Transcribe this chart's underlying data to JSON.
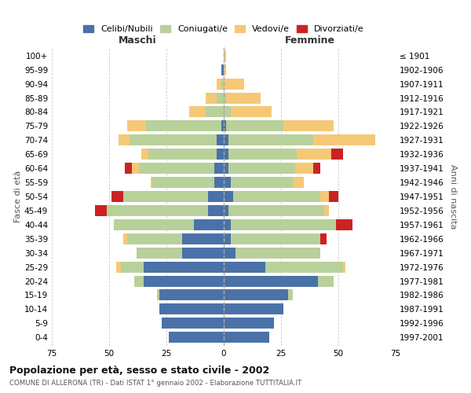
{
  "age_groups": [
    "0-4",
    "5-9",
    "10-14",
    "15-19",
    "20-24",
    "25-29",
    "30-34",
    "35-39",
    "40-44",
    "45-49",
    "50-54",
    "55-59",
    "60-64",
    "65-69",
    "70-74",
    "75-79",
    "80-84",
    "85-89",
    "90-94",
    "95-99",
    "100+"
  ],
  "birth_years": [
    "1997-2001",
    "1992-1996",
    "1987-1991",
    "1982-1986",
    "1977-1981",
    "1972-1976",
    "1967-1971",
    "1962-1966",
    "1957-1961",
    "1952-1956",
    "1947-1951",
    "1942-1946",
    "1937-1941",
    "1932-1936",
    "1927-1931",
    "1922-1926",
    "1917-1921",
    "1912-1916",
    "1907-1911",
    "1902-1906",
    "≤ 1901"
  ],
  "colors": {
    "celibi": "#4a72a8",
    "coniugati": "#b8d09a",
    "vedovi": "#f5c878",
    "divorziati": "#cc2222"
  },
  "legend_labels": [
    "Celibi/Nubili",
    "Coniugati/e",
    "Vedovi/e",
    "Divorziati/e"
  ],
  "male": {
    "celibi": [
      24,
      27,
      28,
      28,
      35,
      35,
      18,
      18,
      13,
      7,
      7,
      4,
      4,
      3,
      3,
      1,
      0,
      0,
      0,
      1,
      0
    ],
    "coniugati": [
      0,
      0,
      0,
      1,
      4,
      10,
      20,
      24,
      35,
      44,
      37,
      27,
      33,
      30,
      38,
      33,
      8,
      3,
      1,
      0,
      0
    ],
    "vedovi": [
      0,
      0,
      0,
      0,
      0,
      2,
      0,
      2,
      0,
      0,
      0,
      1,
      3,
      3,
      5,
      8,
      7,
      5,
      2,
      0,
      0
    ],
    "divorziati": [
      0,
      0,
      0,
      0,
      0,
      0,
      0,
      0,
      0,
      5,
      5,
      0,
      3,
      0,
      0,
      0,
      0,
      0,
      0,
      0,
      0
    ]
  },
  "female": {
    "nubili": [
      20,
      22,
      26,
      28,
      41,
      18,
      5,
      3,
      3,
      2,
      4,
      3,
      2,
      2,
      2,
      1,
      0,
      0,
      0,
      0,
      0
    ],
    "coniugati": [
      0,
      0,
      0,
      2,
      7,
      34,
      37,
      39,
      46,
      42,
      38,
      27,
      29,
      30,
      37,
      25,
      3,
      1,
      0,
      0,
      0
    ],
    "vedovi": [
      0,
      0,
      0,
      0,
      0,
      1,
      0,
      0,
      0,
      2,
      4,
      5,
      8,
      15,
      27,
      22,
      18,
      15,
      9,
      1,
      1
    ],
    "divorziati": [
      0,
      0,
      0,
      0,
      0,
      0,
      0,
      3,
      7,
      0,
      4,
      0,
      3,
      5,
      0,
      0,
      0,
      0,
      0,
      0,
      0
    ]
  },
  "title": "Popolazione per età, sesso e stato civile - 2002",
  "subtitle": "COMUNE DI ALLERONA (TR) - Dati ISTAT 1° gennaio 2002 - Elaborazione TUTTITALIA.IT",
  "xlabel_left": "Maschi",
  "xlabel_right": "Femmine",
  "ylabel_left": "Fasce di età",
  "ylabel_right": "Anni di nascita",
  "xlim": 75,
  "background_color": "#ffffff",
  "grid_color": "#cccccc"
}
